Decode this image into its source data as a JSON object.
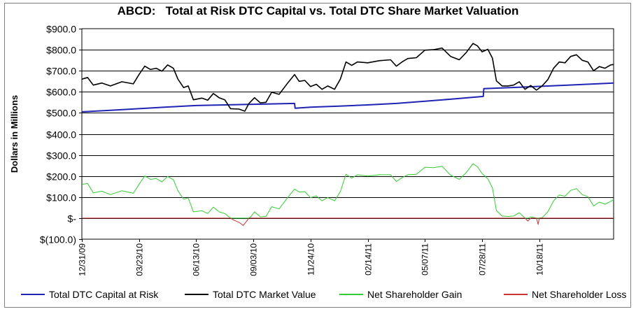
{
  "chart_data": {
    "type": "line",
    "title": "ABCD:   Total at Risk DTC Capital vs. Total DTC Share Market Valuation",
    "xlabel": "",
    "ylabel": "Dollars in Millions",
    "ylim": [
      -100,
      900
    ],
    "y_tick_step": 100,
    "y_tick_labels": [
      "$(100.0)",
      "$-",
      "$100.0",
      "$200.0",
      "$300.0",
      "$400.0",
      "$500.0",
      "$600.0",
      "$700.0",
      "$800.0",
      "$900.0"
    ],
    "x_tick_labels": [
      "12/31/09",
      "03/23/10",
      "06/13/10",
      "09/03/10",
      "11/24/10",
      "02/14/11",
      "05/07/11",
      "07/28/11",
      "10/18/11"
    ],
    "x_tick_positions": [
      0,
      1,
      2,
      3,
      4,
      5,
      6,
      7,
      8
    ],
    "xlim": [
      0,
      9.3
    ],
    "grid": "horizontal",
    "legend_placement": "bottom",
    "series": [
      {
        "name": "Total DTC Capital at Risk",
        "color": "#1f24b4",
        "points": [
          [
            0,
            505
          ],
          [
            0.5,
            512
          ],
          [
            1,
            520
          ],
          [
            1.5,
            528
          ],
          [
            2,
            535
          ],
          [
            2.5,
            538
          ],
          [
            3,
            541
          ],
          [
            3.72,
            545
          ],
          [
            3.73,
            522
          ],
          [
            4,
            527
          ],
          [
            4.5,
            532
          ],
          [
            5,
            538
          ],
          [
            5.5,
            545
          ],
          [
            6,
            555
          ],
          [
            6.5,
            566
          ],
          [
            7.02,
            578
          ],
          [
            7.03,
            615
          ],
          [
            7.5,
            620
          ],
          [
            8,
            626
          ],
          [
            8.5,
            632
          ],
          [
            9.3,
            642
          ]
        ]
      },
      {
        "name": "Total DTC Market Value",
        "color": "#000000",
        "points": [
          [
            0,
            660
          ],
          [
            0.1,
            668
          ],
          [
            0.2,
            632
          ],
          [
            0.35,
            642
          ],
          [
            0.5,
            628
          ],
          [
            0.7,
            648
          ],
          [
            0.9,
            638
          ],
          [
            1.0,
            682
          ],
          [
            1.1,
            722
          ],
          [
            1.2,
            706
          ],
          [
            1.3,
            712
          ],
          [
            1.4,
            698
          ],
          [
            1.5,
            728
          ],
          [
            1.6,
            712
          ],
          [
            1.68,
            660
          ],
          [
            1.78,
            620
          ],
          [
            1.86,
            628
          ],
          [
            1.95,
            562
          ],
          [
            2.1,
            570
          ],
          [
            2.2,
            560
          ],
          [
            2.3,
            592
          ],
          [
            2.4,
            572
          ],
          [
            2.5,
            562
          ],
          [
            2.6,
            520
          ],
          [
            2.75,
            518
          ],
          [
            2.85,
            508
          ],
          [
            2.92,
            544
          ],
          [
            3.02,
            572
          ],
          [
            3.12,
            548
          ],
          [
            3.22,
            550
          ],
          [
            3.32,
            598
          ],
          [
            3.45,
            588
          ],
          [
            3.6,
            642
          ],
          [
            3.72,
            682
          ],
          [
            3.8,
            650
          ],
          [
            3.9,
            654
          ],
          [
            4.0,
            625
          ],
          [
            4.1,
            636
          ],
          [
            4.2,
            612
          ],
          [
            4.3,
            628
          ],
          [
            4.42,
            612
          ],
          [
            4.52,
            660
          ],
          [
            4.62,
            742
          ],
          [
            4.72,
            726
          ],
          [
            4.82,
            742
          ],
          [
            5.0,
            738
          ],
          [
            5.2,
            748
          ],
          [
            5.4,
            752
          ],
          [
            5.5,
            722
          ],
          [
            5.6,
            742
          ],
          [
            5.7,
            758
          ],
          [
            5.85,
            762
          ],
          [
            6.0,
            798
          ],
          [
            6.15,
            800
          ],
          [
            6.3,
            808
          ],
          [
            6.45,
            768
          ],
          [
            6.6,
            752
          ],
          [
            6.72,
            786
          ],
          [
            6.84,
            830
          ],
          [
            6.92,
            818
          ],
          [
            7.0,
            790
          ],
          [
            7.1,
            802
          ],
          [
            7.18,
            760
          ],
          [
            7.25,
            652
          ],
          [
            7.35,
            628
          ],
          [
            7.45,
            628
          ],
          [
            7.55,
            632
          ],
          [
            7.65,
            648
          ],
          [
            7.75,
            612
          ],
          [
            7.85,
            630
          ],
          [
            7.95,
            608
          ],
          [
            8.05,
            628
          ],
          [
            8.15,
            658
          ],
          [
            8.25,
            712
          ],
          [
            8.35,
            742
          ],
          [
            8.45,
            738
          ],
          [
            8.55,
            768
          ],
          [
            8.65,
            776
          ],
          [
            8.75,
            750
          ],
          [
            8.85,
            742
          ],
          [
            8.95,
            700
          ],
          [
            9.05,
            720
          ],
          [
            9.15,
            712
          ],
          [
            9.25,
            728
          ],
          [
            9.3,
            730
          ]
        ]
      },
      {
        "name": "Net Shareholder Gain",
        "color": "#33cc33",
        "points": [
          [
            0,
            160
          ],
          [
            0.1,
            165
          ],
          [
            0.2,
            120
          ],
          [
            0.35,
            128
          ],
          [
            0.5,
            112
          ],
          [
            0.7,
            130
          ],
          [
            0.9,
            118
          ],
          [
            1.0,
            160
          ],
          [
            1.1,
            200
          ],
          [
            1.2,
            184
          ],
          [
            1.3,
            188
          ],
          [
            1.4,
            172
          ],
          [
            1.5,
            198
          ],
          [
            1.6,
            182
          ],
          [
            1.68,
            130
          ],
          [
            1.78,
            90
          ],
          [
            1.86,
            96
          ],
          [
            1.95,
            30
          ],
          [
            2.1,
            35
          ],
          [
            2.2,
            22
          ],
          [
            2.3,
            52
          ],
          [
            2.4,
            30
          ],
          [
            2.5,
            22
          ],
          [
            2.6,
            0
          ],
          [
            2.92,
            0
          ],
          [
            2.95,
            5
          ],
          [
            3.02,
            30
          ],
          [
            3.12,
            6
          ],
          [
            3.22,
            8
          ],
          [
            3.32,
            54
          ],
          [
            3.45,
            44
          ],
          [
            3.6,
            98
          ],
          [
            3.72,
            138
          ],
          [
            3.8,
            124
          ],
          [
            3.9,
            126
          ],
          [
            4.0,
            97
          ],
          [
            4.1,
            106
          ],
          [
            4.2,
            82
          ],
          [
            4.3,
            98
          ],
          [
            4.42,
            82
          ],
          [
            4.52,
            126
          ],
          [
            4.62,
            208
          ],
          [
            4.72,
            190
          ],
          [
            4.82,
            206
          ],
          [
            5.0,
            200
          ],
          [
            5.2,
            206
          ],
          [
            5.4,
            206
          ],
          [
            5.5,
            174
          ],
          [
            5.6,
            192
          ],
          [
            5.7,
            206
          ],
          [
            5.85,
            208
          ],
          [
            6.0,
            242
          ],
          [
            6.15,
            240
          ],
          [
            6.3,
            246
          ],
          [
            6.45,
            204
          ],
          [
            6.6,
            184
          ],
          [
            6.72,
            216
          ],
          [
            6.84,
            258
          ],
          [
            6.92,
            244
          ],
          [
            7.0,
            212
          ],
          [
            7.1,
            187
          ],
          [
            7.18,
            144
          ],
          [
            7.25,
            36
          ],
          [
            7.35,
            10
          ],
          [
            7.45,
            8
          ],
          [
            7.55,
            10
          ],
          [
            7.65,
            26
          ],
          [
            7.75,
            0
          ],
          [
            7.8,
            0
          ],
          [
            7.85,
            6
          ],
          [
            7.95,
            0
          ],
          [
            8.0,
            0
          ],
          [
            8.05,
            2
          ],
          [
            8.15,
            30
          ],
          [
            8.25,
            82
          ],
          [
            8.35,
            110
          ],
          [
            8.45,
            104
          ],
          [
            8.55,
            132
          ],
          [
            8.65,
            140
          ],
          [
            8.75,
            112
          ],
          [
            8.85,
            102
          ],
          [
            8.95,
            58
          ],
          [
            9.05,
            76
          ],
          [
            9.15,
            66
          ],
          [
            9.25,
            80
          ],
          [
            9.3,
            88
          ]
        ]
      },
      {
        "name": "Net Shareholder Loss",
        "color": "#cc3333",
        "points": [
          [
            0,
            0
          ],
          [
            2.6,
            0
          ],
          [
            2.66,
            -10
          ],
          [
            2.75,
            -20
          ],
          [
            2.82,
            -35
          ],
          [
            2.88,
            -15
          ],
          [
            2.92,
            0
          ],
          [
            7.75,
            0
          ],
          [
            7.8,
            -14
          ],
          [
            7.85,
            0
          ],
          [
            7.95,
            0
          ],
          [
            7.98,
            -30
          ],
          [
            8.0,
            0
          ],
          [
            9.3,
            0
          ]
        ]
      }
    ]
  }
}
